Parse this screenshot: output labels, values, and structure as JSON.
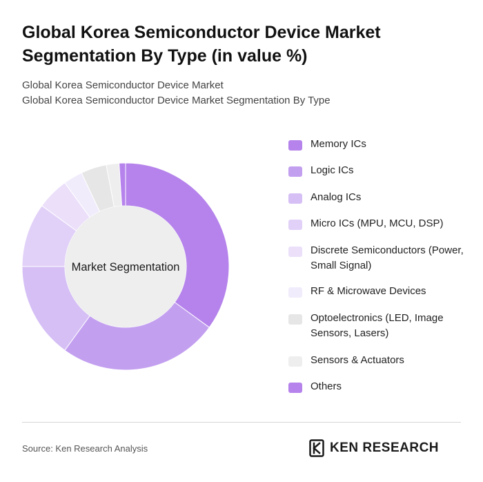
{
  "header": {
    "title": "Global Korea Semiconductor Device Market Segmentation By Type (in value %)",
    "subtitle_line1": "Global Korea Semiconductor Device Market",
    "subtitle_line2": "Global Korea Semiconductor Device Market Segmentation By Type"
  },
  "chart_data": {
    "type": "pie",
    "style": "donut",
    "center_label": "Market Segmentation",
    "legend_position": "right",
    "unit": "%",
    "categories": [
      "Memory ICs",
      "Logic ICs",
      "Analog ICs",
      "Micro ICs (MPU, MCU, DSP)",
      "Discrete Semiconductors (Power, Small Signal)",
      "RF & Microwave Devices",
      "Optoelectronics (LED, Image Sensors, Lasers)",
      "Sensors & Actuators",
      "Others"
    ],
    "values": [
      35,
      25,
      15,
      10,
      5,
      3,
      4,
      2,
      1
    ],
    "colors": [
      "#b583eb",
      "#c39ff0",
      "#d5bff5",
      "#e1d1f8",
      "#ebdffa",
      "#f1ecfc",
      "#e6e6e6",
      "#eeeeee",
      "#b583eb"
    ],
    "center_fill": "#eeeeee"
  },
  "footer": {
    "source": "Source: Ken Research Analysis",
    "brand": "KEN RESEARCH"
  }
}
